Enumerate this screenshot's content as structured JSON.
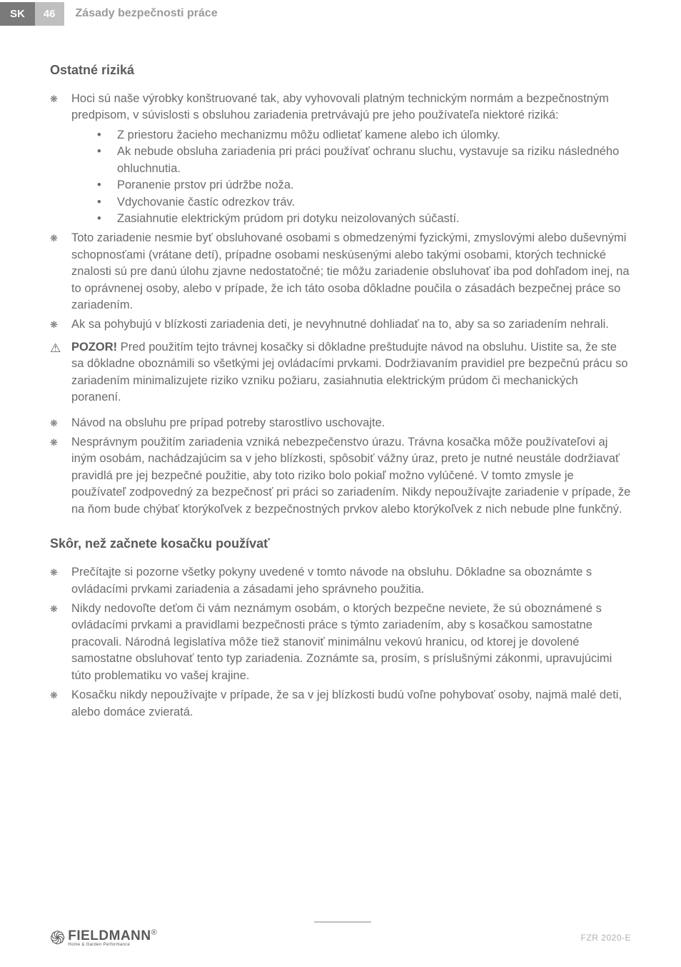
{
  "header": {
    "lang": "SK",
    "page": "46",
    "title": "Zásady bezpečnosti práce"
  },
  "section1": {
    "title": "Ostatné riziká",
    "b1": "Hoci sú naše výrobky konštruované tak, aby vyhovovali platným technickým normám a bezpečnostným predpisom, v súvislosti s obsluhou zariadenia pretrvávajú pre jeho používateľa niektoré riziká:",
    "s1": "Z priestoru žacieho mechanizmu môžu odlietať kamene alebo ich úlomky.",
    "s2": "Ak nebude obsluha zariadenia pri práci používať ochranu sluchu, vystavuje sa riziku následného ohluchnutia.",
    "s3": "Poranenie prstov pri údržbe noža.",
    "s4": "Vdychovanie častíc odrezkov tráv.",
    "s5": "Zasiahnutie elektrickým prúdom pri dotyku neizolovaných súčastí.",
    "b2": "Toto zariadenie nesmie byť obsluhované osobami s obmedzenými fyzickými, zmyslovými alebo duševnými schopnosťami (vrátane detí), prípadne osobami neskúsenými alebo takými osobami, ktorých technické znalosti sú pre danú úlohu zjavne nedostatočné; tie môžu zariadenie obsluhovať iba pod dohľadom inej, na to oprávnenej osoby, alebo v prípade, že ich táto osoba dôkladne poučila o zásadách bezpečnej práce so zariadením.",
    "b3": "Ak sa pohybujú v blízkosti zariadenia deti, je nevyhnutné dohliadať na to, aby sa so zariadením nehrali.",
    "warnLabel": "POZOR!",
    "warnText": " Pred použitím tejto trávnej kosačky si dôkladne preštudujte návod na obsluhu. Uistite sa, že ste sa dôkladne oboznámili so všetkými jej ovládacími prvkami. Dodržiavaním pravidiel pre bezpečnú prácu so zariadením minimalizujete riziko vzniku požiaru, zasiahnutia elektrickým prúdom či mechanických poranení.",
    "b4": "Návod na obsluhu pre prípad potreby starostlivo uschovajte.",
    "b5": "Nesprávnym použitím zariadenia vzniká nebezpečenstvo úrazu. Trávna kosačka môže používateľovi aj iným osobám, nachádzajúcim sa v jeho blízkosti, spôsobiť vážny úraz, preto je nutné neustále dodržiavať pravidlá pre jej bezpečné použitie, aby toto riziko bolo pokiaľ možno vylúčené. V tomto zmysle je používateľ zodpovedný za bezpečnosť pri práci so zariadením. Nikdy nepoužívajte zariadenie v prípade, že na ňom bude chýbať ktorýkoľvek z bezpečnostných prvkov alebo ktorýkoľvek z nich nebude plne funkčný."
  },
  "section2": {
    "title": "Skôr, než začnete kosačku používať",
    "b1": "Prečítajte si pozorne všetky pokyny uvedené v tomto návode na obsluhu. Dôkladne sa oboznámte s ovládacími prvkami zariadenia a zásadami jeho správneho použitia.",
    "b2": "Nikdy nedovoľte deťom či vám neznámym osobám, o ktorých bezpečne neviete, že sú oboznámené s ovládacími prvkami a pravidlami bezpečnosti práce s týmto zariadením, aby s kosačkou samostatne pracovali. Národná legislatíva môže tiež stanoviť minimálnu vekovú hranicu, od ktorej je dovolené samostatne obsluhovať tento typ zariadenia. Zoznámte sa, prosím, s príslušnými zákonmi, upravujúcimi túto problematiku vo vašej krajine.",
    "b3": "Kosačku nikdy nepoužívajte v prípade, že sa v jej blízkosti budú voľne pohybovať osoby, najmä malé deti, alebo domáce zvieratá."
  },
  "footer": {
    "brand": "FIELDMANN",
    "brandSub": "Home & Garden Performance",
    "model": "FZR 2020-E"
  },
  "glyphs": {
    "flower": "❋",
    "dot": "•",
    "warning": "⚠"
  }
}
